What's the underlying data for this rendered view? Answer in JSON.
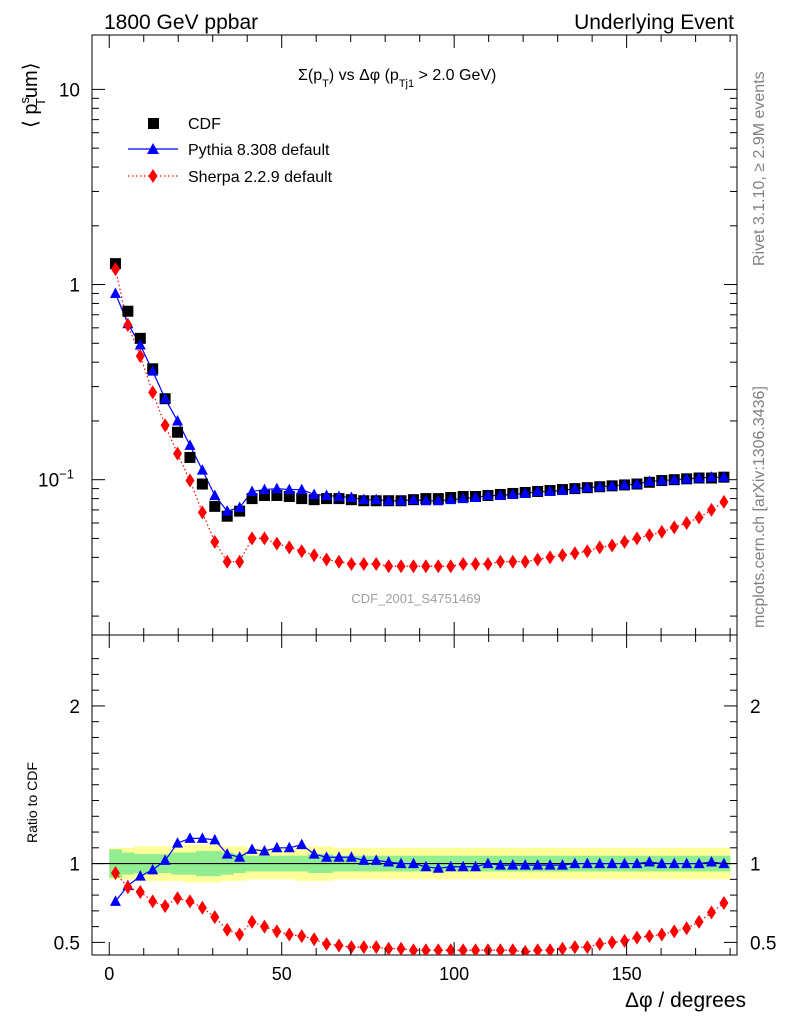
{
  "header": {
    "left": "1800 GeV ppbar",
    "right": "Underlying Event"
  },
  "side_labels": {
    "rivet": "Rivet 3.1.10, ≥ 2.9M events",
    "mcplots": "mcplots.cern.ch [arXiv:1306.3436]"
  },
  "watermark": "CDF_2001_S4751469",
  "chart_data": [
    {
      "type": "scatter",
      "panel": "main",
      "title": "Σ(pT) vs Δφ (pTj1 > 2.0 GeV)",
      "title_parts": [
        "Σ(p",
        "T",
        ") vs Δφ (p",
        "Tj1",
        " > 2.0 GeV)"
      ],
      "ylabel_parts": [
        "⟨ p",
        "s",
        "T",
        "um⟩"
      ],
      "xlabel": "",
      "yscale": "log",
      "xlim": [
        -5,
        182
      ],
      "ylim": [
        0.016,
        19
      ],
      "yticks": [
        {
          "value": 10,
          "label": "10"
        },
        {
          "value": 1,
          "label": "1"
        },
        {
          "value": 0.1,
          "label": "10",
          "exp": "−1"
        }
      ],
      "grid": false,
      "legend_position": "top-left",
      "x": [
        1.8,
        5.4,
        9.0,
        12.6,
        16.2,
        19.8,
        23.4,
        27.0,
        30.6,
        34.2,
        37.8,
        41.4,
        45.0,
        48.6,
        52.2,
        55.8,
        59.4,
        63.0,
        66.6,
        70.2,
        73.8,
        77.4,
        81.0,
        84.6,
        88.2,
        91.8,
        95.4,
        99.0,
        102.6,
        106.2,
        109.8,
        113.4,
        117.0,
        120.6,
        124.2,
        127.8,
        131.4,
        135.0,
        138.6,
        142.2,
        145.8,
        149.4,
        153.0,
        156.6,
        160.2,
        163.8,
        167.4,
        171.0,
        174.6,
        178.2
      ],
      "series": [
        {
          "name": "CDF",
          "color": "#000000",
          "marker": "square",
          "values": [
            1.28,
            0.73,
            0.53,
            0.37,
            0.26,
            0.175,
            0.13,
            0.095,
            0.073,
            0.065,
            0.069,
            0.08,
            0.083,
            0.083,
            0.082,
            0.08,
            0.079,
            0.08,
            0.08,
            0.079,
            0.078,
            0.078,
            0.078,
            0.078,
            0.079,
            0.08,
            0.08,
            0.081,
            0.082,
            0.082,
            0.083,
            0.084,
            0.085,
            0.086,
            0.087,
            0.088,
            0.089,
            0.09,
            0.091,
            0.092,
            0.093,
            0.094,
            0.095,
            0.097,
            0.099,
            0.1,
            0.101,
            0.102,
            0.102,
            0.103
          ]
        },
        {
          "name": "Pythia 8.308 default",
          "color": "#0000ff",
          "marker": "triangle",
          "line": "solid",
          "values": [
            0.9,
            0.63,
            0.49,
            0.36,
            0.26,
            0.2,
            0.15,
            0.112,
            0.083,
            0.069,
            0.072,
            0.087,
            0.089,
            0.09,
            0.089,
            0.089,
            0.084,
            0.083,
            0.082,
            0.081,
            0.079,
            0.079,
            0.078,
            0.078,
            0.079,
            0.078,
            0.078,
            0.079,
            0.08,
            0.081,
            0.083,
            0.083,
            0.084,
            0.085,
            0.087,
            0.087,
            0.088,
            0.09,
            0.091,
            0.092,
            0.093,
            0.094,
            0.095,
            0.098,
            0.099,
            0.1,
            0.101,
            0.102,
            0.103,
            0.103
          ]
        },
        {
          "name": "Sherpa 2.2.9 default",
          "color": "#ff0000",
          "marker": "diamond",
          "line": "dotted",
          "values": [
            1.2,
            0.62,
            0.43,
            0.28,
            0.19,
            0.136,
            0.099,
            0.068,
            0.048,
            0.038,
            0.038,
            0.05,
            0.05,
            0.047,
            0.045,
            0.043,
            0.041,
            0.039,
            0.038,
            0.037,
            0.037,
            0.037,
            0.036,
            0.036,
            0.036,
            0.036,
            0.036,
            0.036,
            0.037,
            0.037,
            0.037,
            0.038,
            0.038,
            0.038,
            0.039,
            0.04,
            0.041,
            0.042,
            0.043,
            0.045,
            0.046,
            0.048,
            0.05,
            0.052,
            0.054,
            0.057,
            0.06,
            0.064,
            0.07,
            0.077
          ]
        }
      ]
    },
    {
      "type": "scatter",
      "panel": "ratio",
      "xlabel": "Δφ / degrees",
      "ylabel": "Ratio to CDF",
      "xlim": [
        -5,
        182
      ],
      "ylim": [
        0.42,
        2.45
      ],
      "xticks": [
        0,
        50,
        100,
        150
      ],
      "yticks": [
        0.5,
        1,
        2
      ],
      "reference_line": 1,
      "band_inner_color": "#90ee90",
      "band_outer_color": "#ffff99",
      "inner_band": [
        0.09,
        0.07,
        0.06,
        0.06,
        0.06,
        0.07,
        0.07,
        0.08,
        0.08,
        0.07,
        0.06,
        0.05,
        0.05,
        0.05,
        0.05,
        0.05,
        0.06,
        0.06,
        0.05,
        0.05,
        0.05,
        0.05,
        0.05,
        0.05,
        0.05,
        0.05,
        0.05,
        0.05,
        0.05,
        0.05,
        0.05,
        0.05,
        0.05,
        0.05,
        0.05,
        0.05,
        0.05,
        0.05,
        0.05,
        0.05,
        0.05,
        0.05,
        0.05,
        0.05,
        0.05,
        0.05,
        0.05,
        0.05,
        0.05,
        0.05
      ],
      "outer_band": [
        0.1,
        0.1,
        0.11,
        0.11,
        0.11,
        0.11,
        0.12,
        0.12,
        0.12,
        0.11,
        0.11,
        0.1,
        0.1,
        0.1,
        0.1,
        0.11,
        0.11,
        0.11,
        0.1,
        0.1,
        0.1,
        0.1,
        0.1,
        0.1,
        0.1,
        0.1,
        0.1,
        0.1,
        0.1,
        0.1,
        0.1,
        0.1,
        0.1,
        0.1,
        0.1,
        0.1,
        0.1,
        0.1,
        0.1,
        0.1,
        0.1,
        0.1,
        0.1,
        0.1,
        0.1,
        0.1,
        0.1,
        0.1,
        0.1,
        0.1
      ],
      "series": [
        {
          "name": "Pythia 8.308 default",
          "color": "#0000ff",
          "marker": "triangle",
          "line": "solid",
          "values": [
            0.76,
            0.86,
            0.92,
            0.96,
            1.02,
            1.13,
            1.16,
            1.16,
            1.15,
            1.06,
            1.04,
            1.09,
            1.08,
            1.1,
            1.1,
            1.12,
            1.06,
            1.04,
            1.04,
            1.04,
            1.02,
            1.02,
            1.01,
            1.0,
            1.0,
            0.98,
            0.97,
            0.98,
            0.98,
            0.98,
            1.0,
            0.99,
            0.99,
            0.99,
            0.99,
            0.99,
            0.99,
            1.0,
            1.0,
            1.0,
            1.0,
            1.0,
            1.0,
            1.01,
            1.0,
            1.0,
            1.0,
            1.0,
            1.01,
            1.0
          ]
        },
        {
          "name": "Sherpa 2.2.9 default",
          "color": "#ff0000",
          "marker": "diamond",
          "line": "dotted",
          "values": [
            0.94,
            0.85,
            0.82,
            0.76,
            0.73,
            0.78,
            0.76,
            0.72,
            0.66,
            0.58,
            0.55,
            0.63,
            0.6,
            0.57,
            0.55,
            0.54,
            0.52,
            0.49,
            0.48,
            0.47,
            0.47,
            0.47,
            0.46,
            0.46,
            0.45,
            0.45,
            0.45,
            0.45,
            0.45,
            0.45,
            0.45,
            0.45,
            0.45,
            0.44,
            0.45,
            0.45,
            0.46,
            0.47,
            0.47,
            0.49,
            0.5,
            0.51,
            0.53,
            0.54,
            0.55,
            0.57,
            0.59,
            0.63,
            0.69,
            0.75
          ]
        }
      ]
    }
  ]
}
